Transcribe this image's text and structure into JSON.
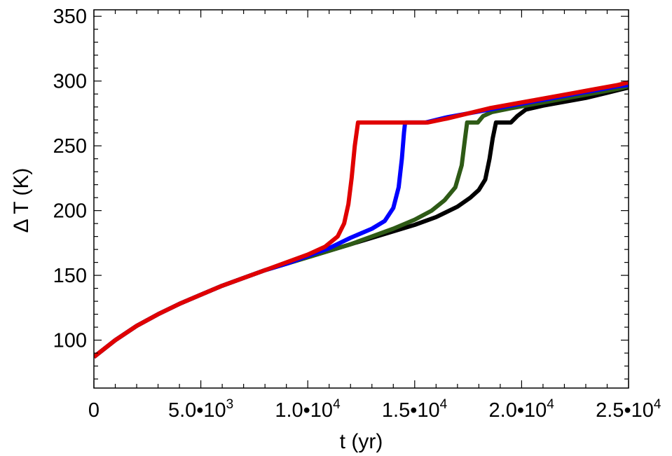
{
  "chart_data": {
    "type": "line",
    "xlabel": "t (yr)",
    "ylabel": "Δ T (K)",
    "xlim": [
      0,
      25000
    ],
    "ylim": [
      63,
      355
    ],
    "grid": false,
    "legend": "none",
    "x_ticks": [
      {
        "value": 0,
        "mantissa": "0",
        "exponent": ""
      },
      {
        "value": 5000,
        "mantissa": "5.0•10",
        "exponent": "3"
      },
      {
        "value": 10000,
        "mantissa": "1.0•10",
        "exponent": "4"
      },
      {
        "value": 15000,
        "mantissa": "1.5•10",
        "exponent": "4"
      },
      {
        "value": 20000,
        "mantissa": "2.0•10",
        "exponent": "4"
      },
      {
        "value": 25000,
        "mantissa": "2.5•10",
        "exponent": "4"
      }
    ],
    "y_ticks": [
      100,
      150,
      200,
      250,
      300,
      350
    ],
    "series": [
      {
        "color": "#000000",
        "points": [
          [
            0,
            87
          ],
          [
            1000,
            100
          ],
          [
            2000,
            111
          ],
          [
            3000,
            120
          ],
          [
            4000,
            128
          ],
          [
            5000,
            135
          ],
          [
            6000,
            142
          ],
          [
            7000,
            148
          ],
          [
            8000,
            154
          ],
          [
            9000,
            159
          ],
          [
            10000,
            164
          ],
          [
            11000,
            169
          ],
          [
            12000,
            174
          ],
          [
            13000,
            179
          ],
          [
            14000,
            184
          ],
          [
            15000,
            189
          ],
          [
            16000,
            195
          ],
          [
            17000,
            203
          ],
          [
            17600,
            210
          ],
          [
            18000,
            216
          ],
          [
            18300,
            224
          ],
          [
            18500,
            240
          ],
          [
            18650,
            256
          ],
          [
            18800,
            268
          ],
          [
            19500,
            268
          ],
          [
            19800,
            273
          ],
          [
            20200,
            278
          ],
          [
            21000,
            281
          ],
          [
            22000,
            284
          ],
          [
            23000,
            287
          ],
          [
            24000,
            291
          ],
          [
            25000,
            295
          ]
        ]
      },
      {
        "color": "#2e5a16",
        "points": [
          [
            0,
            87
          ],
          [
            1000,
            100
          ],
          [
            2000,
            111
          ],
          [
            3000,
            120
          ],
          [
            4000,
            128
          ],
          [
            5000,
            135
          ],
          [
            6000,
            142
          ],
          [
            7000,
            148
          ],
          [
            8000,
            154
          ],
          [
            9000,
            159
          ],
          [
            10000,
            164
          ],
          [
            11000,
            169
          ],
          [
            12000,
            174
          ],
          [
            13000,
            180
          ],
          [
            14000,
            186
          ],
          [
            15000,
            193
          ],
          [
            15800,
            200
          ],
          [
            16400,
            208
          ],
          [
            16900,
            218
          ],
          [
            17200,
            235
          ],
          [
            17350,
            255
          ],
          [
            17450,
            268
          ],
          [
            17950,
            268
          ],
          [
            18200,
            273
          ],
          [
            18600,
            276
          ],
          [
            19500,
            279
          ],
          [
            20500,
            282
          ],
          [
            21500,
            285
          ],
          [
            22500,
            288
          ],
          [
            23500,
            291
          ],
          [
            24500,
            294
          ],
          [
            25000,
            296
          ]
        ]
      },
      {
        "color": "#0000ff",
        "points": [
          [
            0,
            87
          ],
          [
            1000,
            100
          ],
          [
            2000,
            111
          ],
          [
            3000,
            120
          ],
          [
            4000,
            128
          ],
          [
            5000,
            135
          ],
          [
            6000,
            142
          ],
          [
            7000,
            148
          ],
          [
            8000,
            154
          ],
          [
            9000,
            159
          ],
          [
            10000,
            165
          ],
          [
            11000,
            171
          ],
          [
            12000,
            179
          ],
          [
            13000,
            186
          ],
          [
            13600,
            192
          ],
          [
            14000,
            202
          ],
          [
            14250,
            218
          ],
          [
            14400,
            240
          ],
          [
            14500,
            260
          ],
          [
            14550,
            268
          ],
          [
            15500,
            268
          ],
          [
            16500,
            272
          ],
          [
            17500,
            275
          ],
          [
            18500,
            278
          ],
          [
            19500,
            281
          ],
          [
            20500,
            284
          ],
          [
            21500,
            287
          ],
          [
            22500,
            290
          ],
          [
            23500,
            293
          ],
          [
            24500,
            296
          ],
          [
            25000,
            297
          ]
        ]
      },
      {
        "color": "#e00000",
        "points": [
          [
            0,
            87
          ],
          [
            1000,
            100
          ],
          [
            2000,
            111
          ],
          [
            3000,
            120
          ],
          [
            4000,
            128
          ],
          [
            5000,
            135
          ],
          [
            6000,
            142
          ],
          [
            7000,
            148
          ],
          [
            8000,
            154
          ],
          [
            9000,
            160
          ],
          [
            10000,
            166
          ],
          [
            10800,
            172
          ],
          [
            11400,
            180
          ],
          [
            11700,
            190
          ],
          [
            11900,
            205
          ],
          [
            12050,
            225
          ],
          [
            12200,
            250
          ],
          [
            12350,
            268
          ],
          [
            15600,
            268
          ],
          [
            16500,
            271
          ],
          [
            17500,
            275
          ],
          [
            18500,
            279
          ],
          [
            19500,
            282
          ],
          [
            20500,
            285
          ],
          [
            21500,
            288
          ],
          [
            22500,
            291
          ],
          [
            23500,
            294
          ],
          [
            24500,
            297
          ],
          [
            25000,
            299
          ]
        ]
      }
    ]
  }
}
